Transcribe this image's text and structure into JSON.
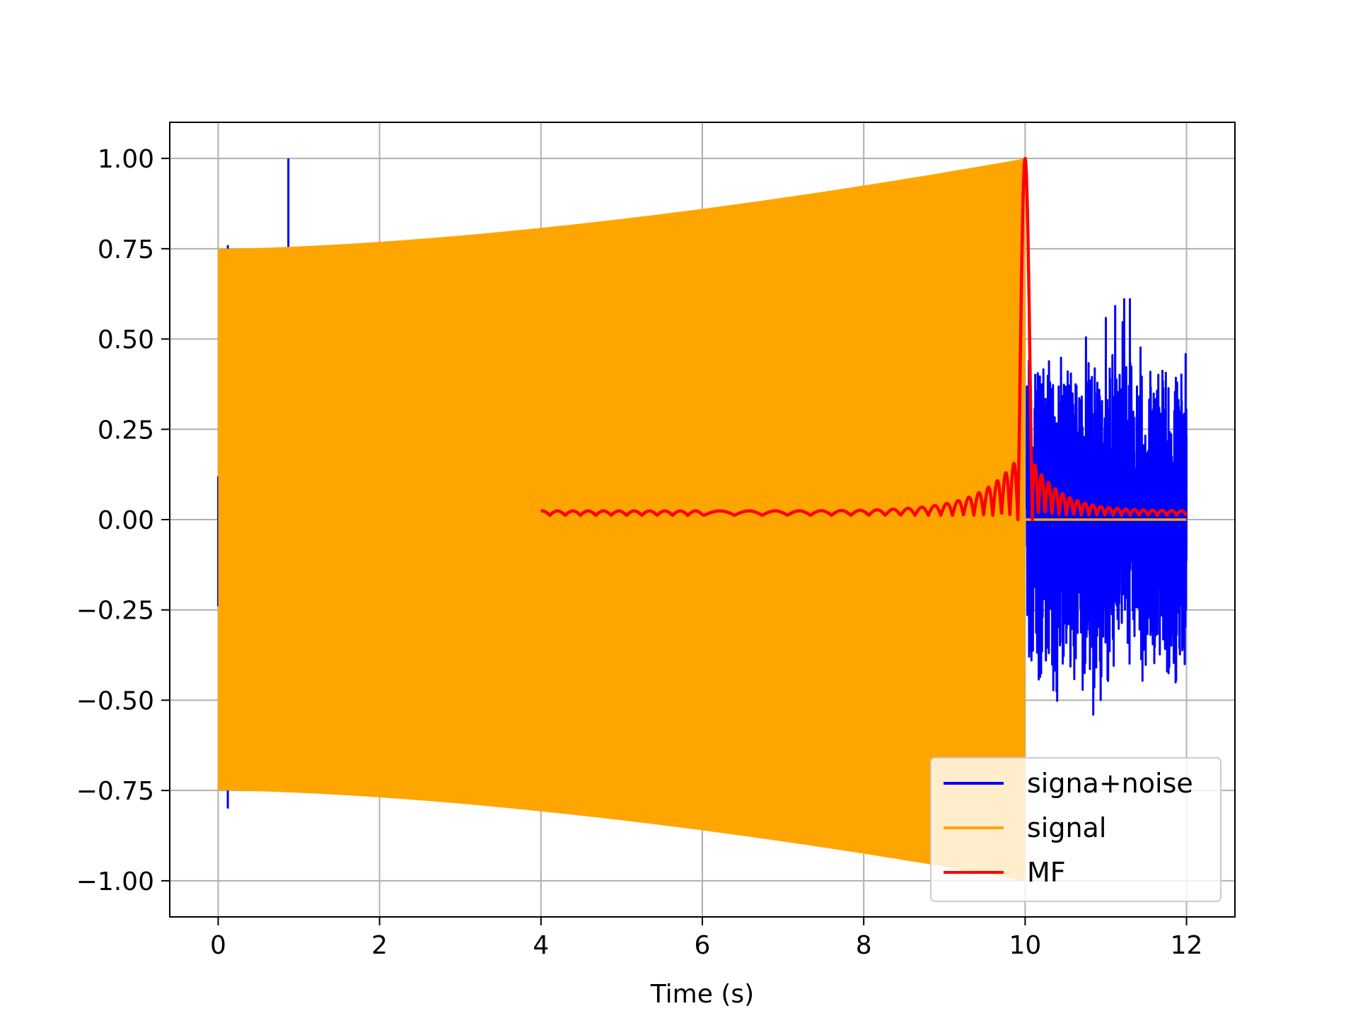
{
  "chart_data": {
    "type": "line",
    "title": "",
    "xlabel": "Time (s)",
    "ylabel": "",
    "xlim": [
      -0.6,
      12.6
    ],
    "ylim": [
      -1.1,
      1.1
    ],
    "xticks": [
      0,
      2,
      4,
      6,
      8,
      10,
      12
    ],
    "xtick_labels": [
      "0",
      "2",
      "4",
      "6",
      "8",
      "10",
      "12"
    ],
    "yticks": [
      1.0,
      0.75,
      0.5,
      0.25,
      0.0,
      -0.25,
      -0.5,
      -0.75,
      -1.0
    ],
    "ytick_labels": [
      "1.00",
      "0.75",
      "0.50",
      "0.25",
      "0.00",
      "−0.25",
      "−0.50",
      "−0.75",
      "−1.00"
    ],
    "grid": true,
    "legend_position": "lower-right",
    "series": [
      {
        "name": "signa+noise",
        "color": "#0000ff",
        "x_range": [
          0,
          12
        ],
        "envelope_start": 0.75,
        "envelope_end": 1.0,
        "noise_region": [
          10,
          12
        ],
        "noise_peak": [
          0.61,
          -0.54
        ],
        "spikes": [
          {
            "x": 0.87,
            "y": 1.0
          },
          {
            "x": 0.12,
            "y": 0.76
          },
          {
            "x": 0.12,
            "y": -0.8
          }
        ]
      },
      {
        "name": "signal",
        "color": "#ffa500",
        "x_range": [
          0,
          12
        ],
        "chirp_range": [
          0,
          10
        ],
        "envelope_start": 0.75,
        "envelope_end": 1.0
      },
      {
        "name": "MF",
        "color": "#ff0000",
        "x_range": [
          4,
          12
        ],
        "peak": {
          "x": 10,
          "y": 1.0
        }
      }
    ]
  }
}
